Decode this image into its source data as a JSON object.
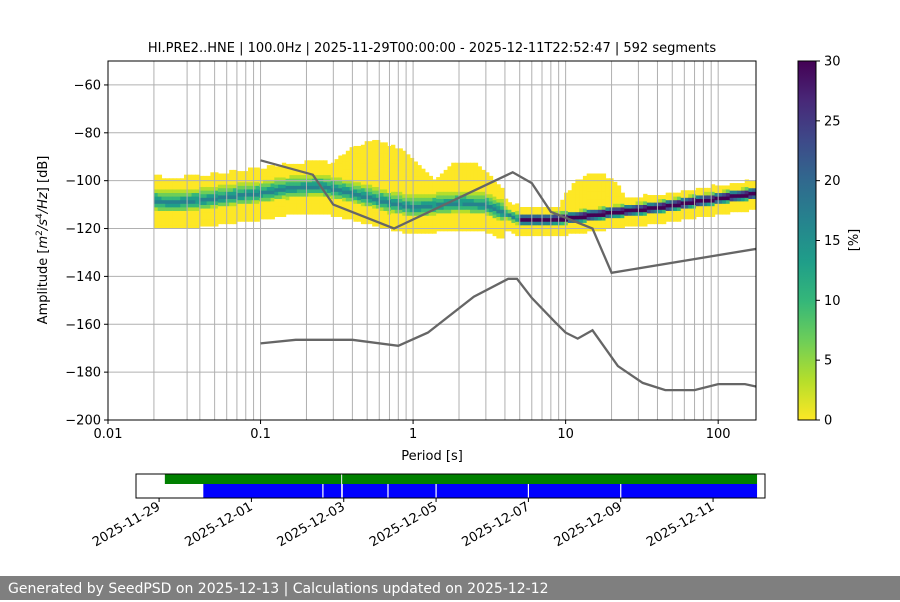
{
  "chart_data": [
    {
      "type": "heatmap",
      "title": "HI.PRE2..HNE | 100.0Hz | 2025-11-29T00:00:00 - 2025-12-11T22:52:47 | 592 segments",
      "xlabel": "Period [s]",
      "ylabel_parts": [
        "Amplitude [",
        "m",
        "2",
        "/",
        "s",
        "4",
        "/",
        "Hz",
        "] [dB]"
      ],
      "x_scale": "log",
      "xlim": [
        0.01,
        177
      ],
      "ylim": [
        -200,
        -50
      ],
      "x_ticks": [
        0.01,
        0.1,
        1,
        10,
        100
      ],
      "x_tick_labels": [
        "0.01",
        "0.1",
        "1",
        "10",
        "100"
      ],
      "y_ticks": [
        -200,
        -180,
        -160,
        -140,
        -120,
        -100,
        -80,
        -60
      ],
      "y_tick_labels": [
        "−200",
        "−180",
        "−160",
        "−140",
        "−120",
        "−100",
        "−80",
        "−60"
      ],
      "grid": true,
      "colorbar": {
        "label": "[%]",
        "range": [
          0,
          30
        ],
        "ticks": [
          0,
          5,
          10,
          15,
          20,
          25,
          30
        ],
        "tick_labels": [
          "0",
          "5",
          "10",
          "15",
          "20",
          "25",
          "30"
        ],
        "colormap": [
          "#fde725",
          "#b5de2b",
          "#6ece58",
          "#35b779",
          "#1f9e89",
          "#26828e",
          "#31688e",
          "#3e4989",
          "#482878",
          "#440154"
        ]
      },
      "distribution_center": [
        {
          "period": 0.02,
          "db": -109
        },
        {
          "period": 0.025,
          "db": -110
        },
        {
          "period": 0.04,
          "db": -109
        },
        {
          "period": 0.07,
          "db": -107
        },
        {
          "period": 0.1,
          "db": -106
        },
        {
          "period": 0.15,
          "db": -104
        },
        {
          "period": 0.25,
          "db": -103
        },
        {
          "period": 0.4,
          "db": -106
        },
        {
          "period": 0.7,
          "db": -110
        },
        {
          "period": 1.0,
          "db": -112
        },
        {
          "period": 2.0,
          "db": -110
        },
        {
          "period": 3.0,
          "db": -111
        },
        {
          "period": 5.0,
          "db": -117
        },
        {
          "period": 8.0,
          "db": -117
        },
        {
          "period": 12.0,
          "db": -116
        },
        {
          "period": 20.0,
          "db": -114
        },
        {
          "period": 40.0,
          "db": -112
        },
        {
          "period": 80.0,
          "db": -109
        },
        {
          "period": 177.0,
          "db": -106
        }
      ],
      "series": [
        {
          "name": "",
          "points": [
            [
              0.1,
              -91.5
            ],
            [
              0.22,
              -97.5
            ],
            [
              0.3,
              -110
            ],
            [
              0.75,
              -120
            ],
            [
              4.5,
              -96.5
            ],
            [
              6.0,
              -101
            ],
            [
              8.0,
              -113
            ],
            [
              15.0,
              -120
            ],
            [
              20.0,
              -138.5
            ],
            [
              177.0,
              -128.5
            ]
          ]
        },
        {
          "name": "",
          "points": [
            [
              0.1,
              -168
            ],
            [
              0.17,
              -166.5
            ],
            [
              0.4,
              -166.5
            ],
            [
              0.8,
              -169
            ],
            [
              1.25,
              -163.5
            ],
            [
              2.5,
              -148.5
            ],
            [
              4.2,
              -141
            ],
            [
              4.8,
              -141
            ],
            [
              6.0,
              -149
            ],
            [
              8.5,
              -159
            ],
            [
              10.0,
              -163.5
            ],
            [
              12.0,
              -166
            ],
            [
              15.0,
              -162.5
            ],
            [
              22.0,
              -177.5
            ],
            [
              32.0,
              -184.5
            ],
            [
              45.0,
              -187.5
            ],
            [
              70.0,
              -187.5
            ],
            [
              100.0,
              -185
            ],
            [
              150.0,
              -185
            ],
            [
              177.0,
              -186
            ]
          ]
        }
      ],
      "vertical_gridlines_periods": [
        0.02,
        0.033,
        0.04,
        0.05,
        0.06,
        0.07,
        0.08,
        0.09,
        0.2,
        0.3,
        0.4,
        0.5,
        0.6,
        0.7,
        0.8,
        0.9,
        2,
        3,
        4,
        5,
        6,
        7,
        8,
        9,
        20,
        30,
        40,
        50,
        60,
        70,
        80,
        90
      ]
    },
    {
      "type": "timeline",
      "xlim": [
        "2025-11-28T12:00",
        "2025-12-12T03:00"
      ],
      "x_tick_labels": [
        "2025-11-29",
        "2025-12-01",
        "2025-12-03",
        "2025-12-05",
        "2025-12-07",
        "2025-12-09",
        "2025-12-11"
      ],
      "x_tick_dates": [
        "2025-11-29",
        "2025-12-01",
        "2025-12-03",
        "2025-12-05",
        "2025-12-07",
        "2025-12-09",
        "2025-12-11"
      ],
      "data_available": {
        "color": "#008000",
        "segments": [
          [
            "2025-11-29T03:00",
            "2025-12-02T22:40"
          ],
          [
            "2025-12-02T23:10",
            "2025-12-11T22:52"
          ]
        ]
      },
      "psd_segments": {
        "color": "#0000ff",
        "segments": [
          [
            "2025-11-29T23:00",
            "2025-12-02T22:40"
          ],
          [
            "2025-12-02T23:30",
            "2025-12-11T22:52"
          ]
        ],
        "gaps": [
          "2025-12-02T13:10",
          "2025-12-03T23:00",
          "2025-12-05T00:00",
          "2025-12-07T00:00",
          "2025-12-09T00:00"
        ]
      }
    }
  ],
  "footer": {
    "text": "Generated by SeedPSD on 2025-12-13 | Calculations updated on 2025-12-12"
  }
}
